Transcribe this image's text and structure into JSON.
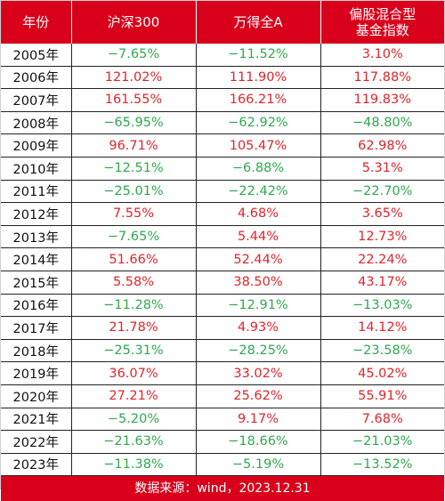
{
  "colors": {
    "header_bg": "#d9001b",
    "positive": "#e0242a",
    "negative": "#2fa84f"
  },
  "header": {
    "year": "年份",
    "hs300": "沪深300",
    "wind_a": "万得全A",
    "fund_index_line1": "偏股混合型",
    "fund_index_line2": "基金指数"
  },
  "rows": [
    {
      "year": "2005年",
      "hs300": "−7.65%",
      "wind_a": "−11.52%",
      "fund": "3.10%"
    },
    {
      "year": "2006年",
      "hs300": "121.02%",
      "wind_a": "111.90%",
      "fund": "117.88%"
    },
    {
      "year": "2007年",
      "hs300": "161.55%",
      "wind_a": "166.21%",
      "fund": "119.83%"
    },
    {
      "year": "2008年",
      "hs300": "−65.95%",
      "wind_a": "−62.92%",
      "fund": "−48.80%"
    },
    {
      "year": "2009年",
      "hs300": "96.71%",
      "wind_a": "105.47%",
      "fund": "62.98%"
    },
    {
      "year": "2010年",
      "hs300": "−12.51%",
      "wind_a": "−6.88%",
      "fund": "5.31%"
    },
    {
      "year": "2011年",
      "hs300": "−25.01%",
      "wind_a": "−22.42%",
      "fund": "−22.70%"
    },
    {
      "year": "2012年",
      "hs300": "7.55%",
      "wind_a": "4.68%",
      "fund": "3.65%"
    },
    {
      "year": "2013年",
      "hs300": "−7.65%",
      "wind_a": "5.44%",
      "fund": "12.73%"
    },
    {
      "year": "2014年",
      "hs300": "51.66%",
      "wind_a": "52.44%",
      "fund": "22.24%"
    },
    {
      "year": "2015年",
      "hs300": "5.58%",
      "wind_a": "38.50%",
      "fund": "43.17%"
    },
    {
      "year": "2016年",
      "hs300": "−11.28%",
      "wind_a": "−12.91%",
      "fund": "−13.03%"
    },
    {
      "year": "2017年",
      "hs300": "21.78%",
      "wind_a": "4.93%",
      "fund": "14.12%"
    },
    {
      "year": "2018年",
      "hs300": "−25.31%",
      "wind_a": "−28.25%",
      "fund": "−23.58%"
    },
    {
      "year": "2019年",
      "hs300": "36.07%",
      "wind_a": "33.02%",
      "fund": "45.02%"
    },
    {
      "year": "2020年",
      "hs300": "27.21%",
      "wind_a": "25.62%",
      "fund": "55.91%"
    },
    {
      "year": "2021年",
      "hs300": "−5.20%",
      "wind_a": "9.17%",
      "fund": "7.68%"
    },
    {
      "year": "2022年",
      "hs300": "−21.63%",
      "wind_a": "−18.66%",
      "fund": "−21.03%"
    },
    {
      "year": "2023年",
      "hs300": "−11.38%",
      "wind_a": "−5.19%",
      "fund": "−13.52%"
    }
  ],
  "footer": {
    "source": "数据来源：wind，2023.12.31"
  }
}
